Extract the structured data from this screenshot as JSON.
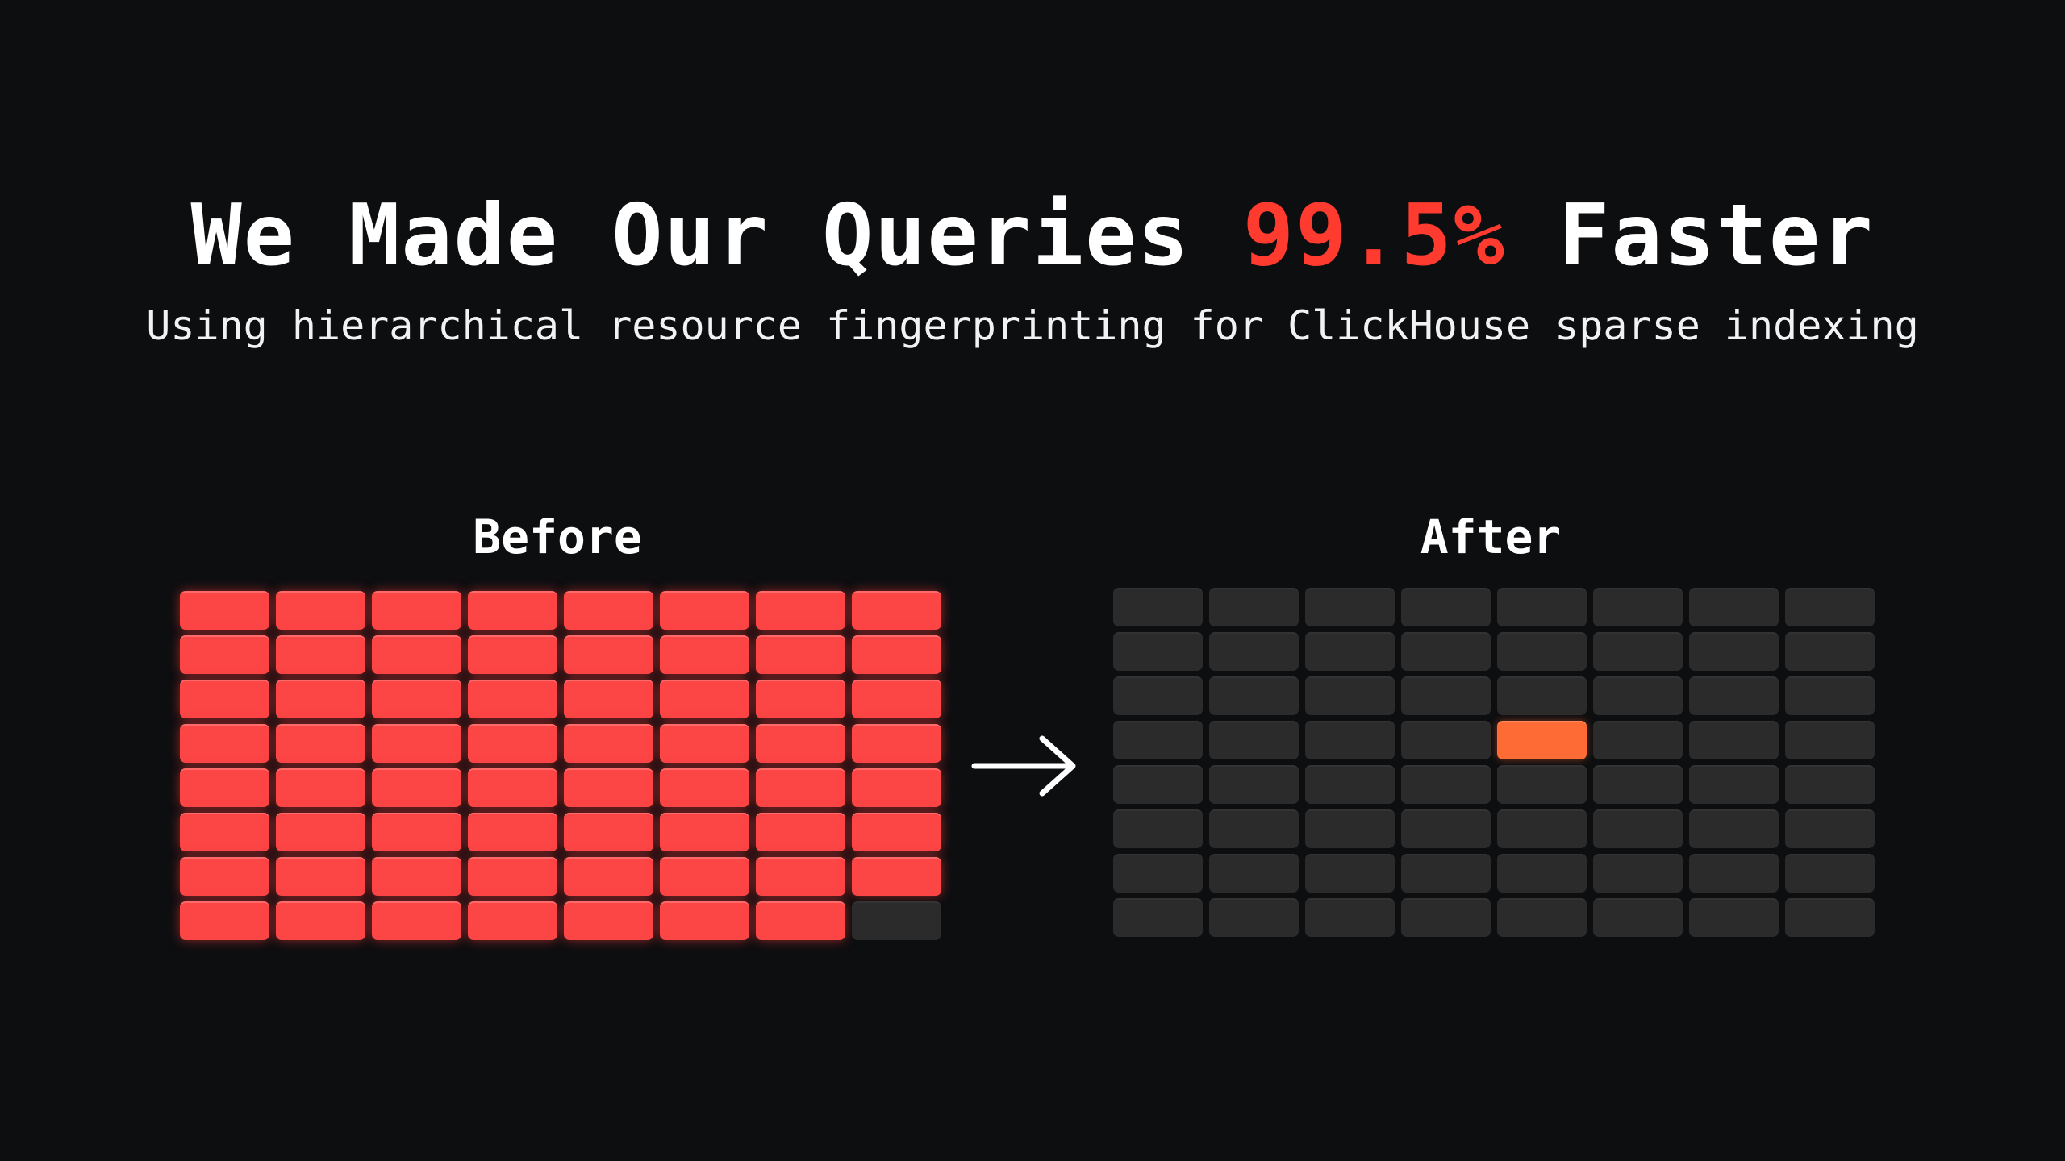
{
  "header": {
    "title_prefix": "We Made Our Queries ",
    "title_highlight": "99.5%",
    "title_suffix": " Faster",
    "subtitle": "Using hierarchical resource fingerprinting for ClickHouse sparse indexing"
  },
  "before": {
    "label": "Before",
    "rows": 8,
    "cols": 8,
    "scanned_cells": 63,
    "total_cells": 64
  },
  "after": {
    "label": "After",
    "rows": 8,
    "cols": 8,
    "scanned_cells": 1,
    "total_cells": 64,
    "highlight_cell": {
      "row": 4,
      "col": 5
    }
  },
  "colors": {
    "background": "#0d0e10",
    "accent": "#ff3b2f",
    "scanned": "#fc4545",
    "skipped": "#2b2b2b",
    "hit": "#ff6b35",
    "text": "#ffffff"
  },
  "icons": {
    "arrow": "arrow-right-icon"
  }
}
